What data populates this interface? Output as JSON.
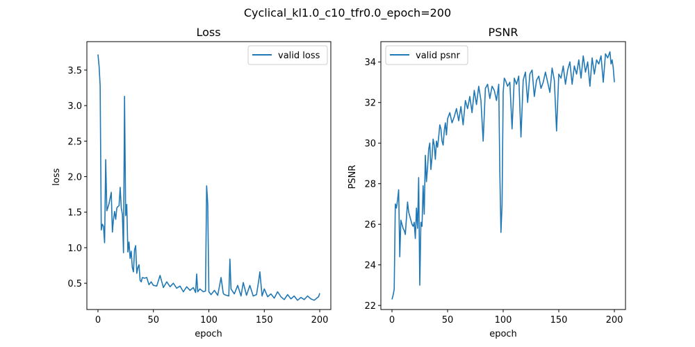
{
  "figure": {
    "suptitle": "Cyclical_kl1.0_c10_tfr0.0_epoch=200"
  },
  "chart_data": [
    {
      "type": "line",
      "title": "Loss",
      "xlabel": "epoch",
      "ylabel": "loss",
      "xlim": [
        -10,
        210
      ],
      "ylim": [
        0.13,
        3.9
      ],
      "xticks": [
        0,
        50,
        100,
        150,
        200
      ],
      "yticks": [
        0.5,
        1.0,
        1.5,
        2.0,
        2.5,
        3.0,
        3.5
      ],
      "ytick_labels": [
        "0.5",
        "1.0",
        "1.5",
        "2.0",
        "2.5",
        "3.0",
        "3.5"
      ],
      "legend_position": "top-right",
      "grid": false,
      "series": [
        {
          "name": "valid loss",
          "color": "#1f77b4",
          "x": [
            0,
            1,
            2,
            3,
            4,
            5,
            6,
            7,
            8,
            9,
            10,
            11,
            12,
            13,
            14,
            15,
            16,
            17,
            18,
            19,
            20,
            21,
            22,
            23,
            24,
            25,
            26,
            27,
            28,
            29,
            30,
            31,
            32,
            33,
            34,
            35,
            36,
            37,
            38,
            39,
            40,
            42,
            44,
            46,
            48,
            50,
            53,
            56,
            59,
            62,
            65,
            68,
            71,
            74,
            77,
            80,
            83,
            86,
            88,
            89,
            90,
            92,
            95,
            97,
            98,
            99,
            100,
            102,
            105,
            108,
            111,
            113,
            114,
            116,
            118,
            119,
            120,
            123,
            126,
            129,
            131,
            134,
            137,
            140,
            143,
            145,
            146,
            148,
            150,
            153,
            156,
            159,
            162,
            165,
            168,
            171,
            174,
            177,
            180,
            183,
            186,
            189,
            192,
            195,
            198,
            199,
            200
          ],
          "y": [
            3.72,
            3.55,
            3.28,
            1.25,
            1.33,
            1.3,
            1.07,
            2.24,
            1.52,
            1.57,
            1.62,
            1.7,
            1.78,
            1.22,
            1.4,
            1.51,
            1.4,
            1.56,
            1.58,
            1.59,
            1.85,
            1.56,
            1.47,
            0.93,
            3.13,
            1.45,
            1.61,
            0.94,
            1.08,
            0.85,
            0.95,
            0.72,
            0.66,
            0.97,
            1.03,
            0.64,
            0.72,
            0.76,
            0.54,
            0.52,
            0.58,
            0.57,
            0.58,
            0.48,
            0.52,
            0.47,
            0.46,
            0.61,
            0.44,
            0.52,
            0.45,
            0.5,
            0.43,
            0.46,
            0.38,
            0.45,
            0.4,
            0.44,
            0.37,
            0.63,
            0.38,
            0.42,
            0.38,
            0.39,
            1.87,
            1.62,
            0.38,
            0.34,
            0.4,
            0.33,
            0.58,
            0.36,
            0.34,
            0.33,
            0.32,
            0.84,
            0.42,
            0.35,
            0.47,
            0.32,
            0.51,
            0.33,
            0.47,
            0.32,
            0.34,
            0.54,
            0.66,
            0.32,
            0.42,
            0.31,
            0.35,
            0.29,
            0.38,
            0.31,
            0.27,
            0.34,
            0.28,
            0.32,
            0.26,
            0.3,
            0.27,
            0.32,
            0.28,
            0.26,
            0.3,
            0.31,
            0.36
          ]
        }
      ]
    },
    {
      "type": "line",
      "title": "PSNR",
      "xlabel": "epoch",
      "ylabel": "PSNR",
      "xlim": [
        -10,
        210
      ],
      "ylim": [
        21.8,
        35.0
      ],
      "xticks": [
        0,
        50,
        100,
        150,
        200
      ],
      "yticks": [
        22,
        24,
        26,
        28,
        30,
        32,
        34
      ],
      "ytick_labels": [
        "22",
        "24",
        "26",
        "28",
        "30",
        "32",
        "34"
      ],
      "legend_position": "top-left",
      "grid": false,
      "series": [
        {
          "name": "valid psnr",
          "color": "#1f77b4",
          "x": [
            0,
            1,
            2,
            3,
            4,
            5,
            6,
            7,
            8,
            9,
            10,
            11,
            12,
            13,
            14,
            15,
            16,
            17,
            18,
            19,
            20,
            21,
            22,
            23,
            24,
            25,
            26,
            27,
            28,
            29,
            30,
            31,
            32,
            33,
            34,
            35,
            36,
            37,
            38,
            39,
            40,
            41,
            42,
            43,
            44,
            45,
            46,
            47,
            48,
            49,
            50,
            52,
            54,
            56,
            58,
            60,
            62,
            64,
            66,
            68,
            70,
            72,
            74,
            76,
            78,
            80,
            82,
            84,
            86,
            88,
            90,
            92,
            94,
            96,
            97,
            98,
            99,
            100,
            101,
            102,
            104,
            106,
            108,
            110,
            112,
            114,
            116,
            118,
            120,
            122,
            124,
            126,
            128,
            130,
            132,
            134,
            136,
            138,
            140,
            142,
            144,
            146,
            148,
            150,
            152,
            154,
            156,
            158,
            160,
            162,
            164,
            166,
            168,
            170,
            172,
            174,
            176,
            178,
            180,
            182,
            184,
            186,
            188,
            190,
            192,
            194,
            196,
            197,
            198,
            199,
            200
          ],
          "y": [
            22.3,
            22.5,
            22.8,
            27.0,
            26.8,
            27.2,
            27.7,
            24.4,
            26.2,
            26.0,
            25.8,
            25.7,
            25.5,
            26.3,
            27.1,
            26.6,
            26.4,
            26.2,
            26.0,
            25.9,
            26.1,
            25.3,
            26.8,
            25.8,
            28.3,
            23.0,
            26.1,
            25.9,
            27.9,
            26.5,
            29.4,
            28.1,
            28.8,
            29.7,
            30.0,
            28.7,
            29.3,
            30.2,
            29.9,
            29.2,
            30.1,
            29.8,
            30.3,
            30.9,
            30.7,
            30.1,
            29.9,
            30.6,
            31.0,
            30.4,
            31.2,
            31.5,
            31.0,
            31.3,
            31.7,
            31.1,
            31.8,
            30.9,
            32.1,
            31.7,
            32.3,
            31.5,
            32.6,
            31.9,
            32.8,
            32.1,
            30.1,
            32.7,
            32.9,
            32.2,
            32.8,
            32.6,
            32.1,
            32.9,
            28.5,
            25.6,
            27.0,
            32.5,
            33.2,
            33.1,
            32.8,
            33.0,
            30.7,
            33.2,
            32.9,
            33.3,
            30.3,
            33.1,
            33.5,
            32.0,
            33.4,
            33.6,
            32.3,
            33.1,
            33.3,
            32.7,
            33.0,
            33.5,
            33.0,
            32.5,
            33.7,
            33.1,
            30.6,
            33.4,
            33.2,
            33.8,
            32.9,
            33.6,
            34.0,
            32.9,
            33.8,
            33.4,
            34.1,
            33.2,
            34.3,
            33.5,
            34.0,
            32.8,
            34.2,
            33.4,
            34.1,
            33.9,
            34.3,
            33.0,
            34.4,
            34.2,
            34.5,
            33.9,
            34.1,
            33.7,
            33.0
          ]
        }
      ]
    }
  ]
}
